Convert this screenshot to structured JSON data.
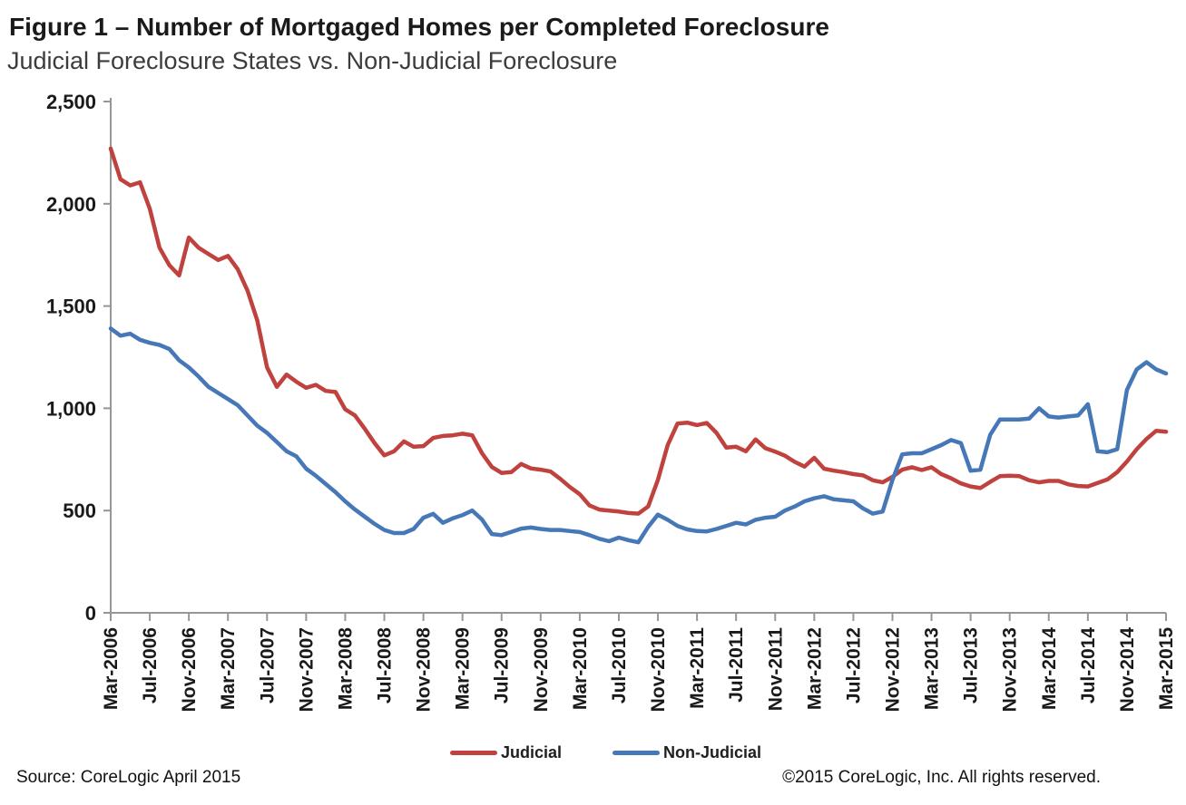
{
  "title": "Figure 1 – Number of Mortgaged Homes per Completed Foreclosure",
  "subtitle": "Judicial Foreclosure States vs. Non-Judicial Foreclosure",
  "footer": {
    "source": "Source: CoreLogic  April 2015",
    "copyright": "©2015 CoreLogic, Inc.  All rights reserved."
  },
  "legend": {
    "items": [
      {
        "label": "Judicial",
        "color": "#C0423F"
      },
      {
        "label": "Non-Judicial",
        "color": "#4678B7"
      }
    ]
  },
  "chart_data": {
    "type": "line",
    "title": "Figure 1 – Number of Mortgaged Homes per Completed Foreclosure",
    "subtitle": "Judicial Foreclosure States vs. Non-Judicial Foreclosure",
    "xlabel": "",
    "ylabel": "",
    "grid": false,
    "legend_position": "bottom-center",
    "x_axis": {
      "start_label": "Mar-2006",
      "end_label": "Mar-2015",
      "interval": "monthly",
      "tick_every_points": 4,
      "tick_labels": [
        "Mar-2006",
        "Jul-2006",
        "Nov-2006",
        "Mar-2007",
        "Jul-2007",
        "Nov-2007",
        "Mar-2008",
        "Jul-2008",
        "Nov-2008",
        "Mar-2009",
        "Jul-2009",
        "Nov-2009",
        "Mar-2010",
        "Jul-2010",
        "Nov-2010",
        "Mar-2011",
        "Jul-2011",
        "Nov-2011",
        "Mar-2012",
        "Jul-2012",
        "Nov-2012",
        "Mar-2013",
        "Jul-2013",
        "Nov-2013",
        "Mar-2014",
        "Jul-2014",
        "Nov-2014",
        "Mar-2015"
      ]
    },
    "y_axis": {
      "min": 0,
      "max": 2500,
      "ticks": [
        0,
        500,
        1000,
        1500,
        2000,
        2500
      ],
      "tick_labels": [
        "0",
        "500",
        "1,000",
        "1,500",
        "2,000",
        "2,500"
      ]
    },
    "axis_color": "#969696",
    "text_color": "#1a1a1a",
    "series": [
      {
        "name": "Judicial",
        "color": "#C0423F",
        "values": [
          2270,
          2120,
          2090,
          2105,
          1975,
          1785,
          1700,
          1650,
          1835,
          1785,
          1755,
          1725,
          1745,
          1680,
          1575,
          1430,
          1200,
          1105,
          1165,
          1130,
          1100,
          1115,
          1085,
          1080,
          995,
          965,
          900,
          830,
          770,
          790,
          838,
          812,
          815,
          855,
          865,
          868,
          876,
          868,
          780,
          713,
          684,
          688,
          728,
          706,
          700,
          691,
          655,
          615,
          580,
          525,
          505,
          500,
          495,
          488,
          485,
          520,
          650,
          820,
          925,
          930,
          918,
          928,
          880,
          808,
          812,
          790,
          848,
          805,
          788,
          768,
          738,
          715,
          758,
          705,
          695,
          688,
          678,
          672,
          648,
          638,
          665,
          700,
          712,
          698,
          712,
          678,
          658,
          633,
          618,
          610,
          640,
          668,
          670,
          668,
          648,
          638,
          645,
          645,
          628,
          620,
          618,
          635,
          652,
          688,
          740,
          800,
          850,
          890,
          885
        ]
      },
      {
        "name": "Non-Judicial",
        "color": "#4678B7",
        "values": [
          1390,
          1355,
          1365,
          1335,
          1320,
          1310,
          1290,
          1235,
          1200,
          1155,
          1105,
          1075,
          1045,
          1015,
          965,
          915,
          880,
          835,
          790,
          765,
          705,
          670,
          630,
          590,
          545,
          505,
          470,
          435,
          405,
          390,
          390,
          410,
          465,
          484,
          440,
          462,
          478,
          500,
          456,
          385,
          380,
          396,
          412,
          417,
          410,
          405,
          405,
          400,
          395,
          380,
          362,
          350,
          368,
          355,
          345,
          420,
          480,
          455,
          425,
          408,
          400,
          398,
          410,
          425,
          440,
          432,
          455,
          465,
          470,
          500,
          520,
          545,
          560,
          570,
          555,
          550,
          545,
          510,
          485,
          495,
          650,
          775,
          780,
          780,
          800,
          820,
          845,
          830,
          695,
          700,
          870,
          945,
          945,
          945,
          950,
          1000,
          960,
          955,
          960,
          965,
          1020,
          790,
          785,
          800,
          1090,
          1190,
          1225,
          1190,
          1170
        ]
      }
    ]
  }
}
